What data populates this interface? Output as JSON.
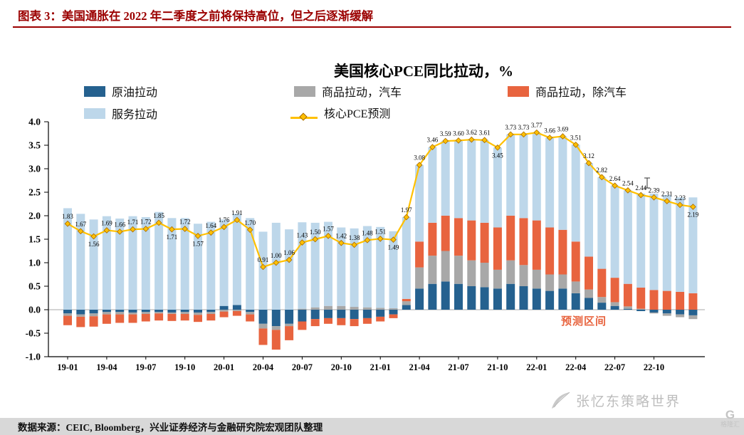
{
  "header": {
    "title": "图表 3：美国通胀在 2022 年二季度之前将保持高位，但之后逐渐缓解"
  },
  "colors": {
    "header_red": "#9B0000",
    "footer_bg": "#D8D8D8",
    "watermark_gray": "#BDBDBD",
    "logo_gray": "#C4C4C4"
  },
  "chart_data": {
    "type": "bar",
    "subtype": "stacked-bar-with-line",
    "title": "美国核心PCE同比拉动，%",
    "ylim": [
      -1.0,
      4.0
    ],
    "yticks": [
      4.0,
      3.5,
      3.0,
      2.5,
      2.0,
      1.5,
      1.0,
      0.5,
      0.0,
      -0.5,
      -1.0
    ],
    "grid": false,
    "legend_position": "top",
    "xtick_step": 3,
    "x": [
      "19-01",
      "19-02",
      "19-03",
      "19-04",
      "19-05",
      "19-06",
      "19-07",
      "19-08",
      "19-09",
      "19-10",
      "19-11",
      "19-12",
      "20-01",
      "20-02",
      "20-03",
      "20-04",
      "20-05",
      "20-06",
      "20-07",
      "20-08",
      "20-09",
      "20-10",
      "20-11",
      "20-12",
      "21-01",
      "21-02",
      "21-03",
      "21-04",
      "21-05",
      "21-06",
      "21-07",
      "21-08",
      "21-09",
      "21-10",
      "21-11",
      "21-12",
      "22-01",
      "22-02",
      "22-03",
      "22-04",
      "22-05",
      "22-06",
      "22-07",
      "22-08",
      "22-09",
      "22-10",
      "22-11",
      "22-12",
      "23-01"
    ],
    "series": [
      {
        "name": "原油拉动",
        "type": "bar",
        "color": "#25618F",
        "values": [
          -0.08,
          -0.1,
          -0.08,
          -0.05,
          -0.05,
          -0.06,
          -0.05,
          -0.05,
          -0.06,
          -0.05,
          -0.06,
          -0.05,
          0.08,
          0.1,
          -0.05,
          -0.3,
          -0.35,
          -0.3,
          -0.25,
          -0.2,
          -0.18,
          -0.18,
          -0.2,
          -0.18,
          -0.15,
          -0.1,
          0.1,
          0.45,
          0.55,
          0.6,
          0.55,
          0.5,
          0.48,
          0.45,
          0.55,
          0.5,
          0.45,
          0.4,
          0.45,
          0.35,
          0.25,
          0.15,
          0.08,
          0.02,
          -0.03,
          -0.06,
          -0.08,
          -0.1,
          -0.12
        ]
      },
      {
        "name": "商品拉动，汽车",
        "type": "bar",
        "color": "#A8A8A8",
        "values": [
          -0.05,
          -0.05,
          -0.06,
          -0.05,
          -0.05,
          -0.04,
          -0.04,
          -0.03,
          -0.03,
          -0.04,
          -0.05,
          -0.04,
          -0.04,
          -0.03,
          -0.05,
          -0.1,
          -0.08,
          -0.05,
          0.02,
          0.05,
          0.08,
          0.08,
          0.06,
          0.05,
          0.04,
          0.03,
          0.08,
          0.45,
          0.6,
          0.65,
          0.6,
          0.55,
          0.52,
          0.4,
          0.5,
          0.45,
          0.4,
          0.35,
          0.3,
          0.25,
          0.18,
          0.12,
          0.08,
          0.05,
          0.02,
          -0.02,
          -0.05,
          -0.06,
          -0.08
        ]
      },
      {
        "name": "商品拉动，除汽车",
        "type": "bar",
        "color": "#E8643F",
        "values": [
          -0.2,
          -0.22,
          -0.22,
          -0.2,
          -0.18,
          -0.18,
          -0.16,
          -0.15,
          -0.15,
          -0.14,
          -0.15,
          -0.14,
          -0.12,
          -0.1,
          -0.15,
          -0.35,
          -0.42,
          -0.3,
          -0.18,
          -0.15,
          -0.12,
          -0.15,
          -0.15,
          -0.12,
          -0.1,
          -0.08,
          0.05,
          0.55,
          0.7,
          0.75,
          0.8,
          0.85,
          0.85,
          0.9,
          0.95,
          1.0,
          1.05,
          1.0,
          0.95,
          0.85,
          0.7,
          0.6,
          0.52,
          0.48,
          0.45,
          0.42,
          0.4,
          0.38,
          0.35
        ]
      },
      {
        "name": "服务拉动",
        "type": "bar",
        "color": "#BDD7EA",
        "values": [
          2.16,
          2.04,
          1.92,
          1.99,
          1.94,
          1.99,
          1.97,
          2.08,
          1.95,
          1.95,
          1.83,
          1.87,
          1.84,
          1.94,
          1.95,
          1.66,
          1.85,
          1.71,
          1.84,
          1.8,
          1.79,
          1.67,
          1.67,
          1.73,
          1.72,
          1.64,
          1.74,
          1.63,
          1.61,
          1.59,
          1.65,
          1.72,
          1.76,
          1.7,
          1.73,
          1.78,
          1.87,
          1.91,
          1.99,
          2.06,
          1.99,
          1.95,
          1.96,
          1.99,
          2.0,
          2.05,
          2.04,
          2.01,
          2.04
        ]
      },
      {
        "name": "核心PCE预测",
        "type": "line",
        "color": "#FFC000",
        "values": [
          1.83,
          1.67,
          1.56,
          1.69,
          1.66,
          1.71,
          1.72,
          1.85,
          1.71,
          1.72,
          1.57,
          1.64,
          1.76,
          1.91,
          1.7,
          0.91,
          1.0,
          1.06,
          1.43,
          1.5,
          1.57,
          1.42,
          1.38,
          1.48,
          1.51,
          1.49,
          1.97,
          3.08,
          3.46,
          3.59,
          3.6,
          3.62,
          3.61,
          3.45,
          3.73,
          3.73,
          3.77,
          3.66,
          3.69,
          3.51,
          3.12,
          2.82,
          2.64,
          2.54,
          2.44,
          2.39,
          2.31,
          2.23,
          2.19
        ]
      }
    ],
    "label_below": [
      2,
      8,
      10,
      25,
      33,
      48
    ],
    "annotations": {
      "forecast_label": "预测区间",
      "color": "#E8643F"
    }
  },
  "footer": {
    "source": "数据来源：CEIC, Bloomberg，兴业证券经济与金融研究院宏观团队整理"
  },
  "watermarks": {
    "brand": "张忆东策略世界",
    "logo_text": "格隆汇",
    "logo_letter": "G"
  }
}
